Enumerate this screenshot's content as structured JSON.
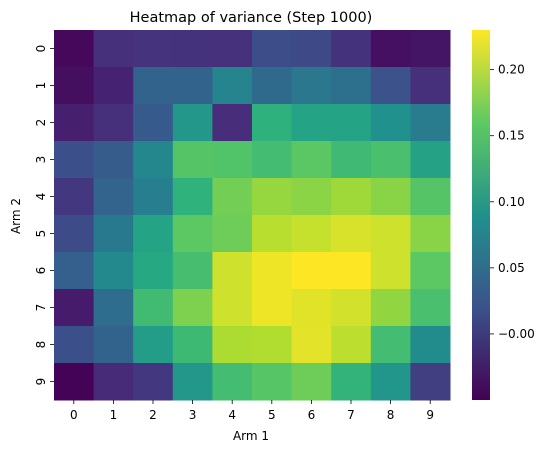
{
  "chart_data": {
    "type": "heatmap",
    "title": "Heatmap of variance (Step 1000)",
    "xlabel": "Arm 1",
    "ylabel": "Arm 2",
    "x_categories": [
      "0",
      "1",
      "2",
      "3",
      "4",
      "5",
      "6",
      "7",
      "8",
      "9"
    ],
    "y_categories": [
      "0",
      "1",
      "2",
      "3",
      "4",
      "5",
      "6",
      "7",
      "8",
      "9"
    ],
    "values": [
      [
        -0.044,
        -0.011,
        -0.008,
        -0.009,
        -0.01,
        0.016,
        0.012,
        -0.009,
        -0.038,
        -0.034
      ],
      [
        -0.039,
        -0.022,
        0.04,
        0.04,
        0.076,
        0.047,
        0.062,
        0.054,
        0.021,
        -0.012
      ],
      [
        -0.025,
        -0.011,
        0.03,
        0.098,
        -0.014,
        0.13,
        0.113,
        0.113,
        0.091,
        0.066
      ],
      [
        0.019,
        0.032,
        0.08,
        0.155,
        0.153,
        0.144,
        0.159,
        0.141,
        0.148,
        0.111
      ],
      [
        -0.004,
        0.041,
        0.07,
        0.131,
        0.17,
        0.186,
        0.181,
        0.19,
        0.18,
        0.155
      ],
      [
        0.015,
        0.064,
        0.114,
        0.16,
        0.168,
        0.201,
        0.207,
        0.215,
        0.21,
        0.18
      ],
      [
        0.035,
        0.082,
        0.119,
        0.146,
        0.21,
        0.224,
        0.23,
        0.23,
        0.21,
        0.16
      ],
      [
        -0.029,
        0.051,
        0.142,
        0.175,
        0.21,
        0.224,
        0.218,
        0.212,
        0.184,
        0.148
      ],
      [
        0.019,
        0.04,
        0.104,
        0.14,
        0.196,
        0.198,
        0.219,
        0.202,
        0.144,
        0.086
      ],
      [
        -0.048,
        -0.016,
        -0.004,
        0.1,
        0.144,
        0.156,
        0.168,
        0.133,
        0.097,
        0.002
      ]
    ],
    "colorbar": {
      "range": [
        -0.05,
        0.23
      ],
      "ticks": [
        -0.0,
        0.05,
        0.1,
        0.15,
        0.2
      ],
      "tick_labels": [
        "−0.00",
        "0.05",
        "0.10",
        "0.15",
        "0.20"
      ]
    },
    "colormap": "viridis"
  }
}
